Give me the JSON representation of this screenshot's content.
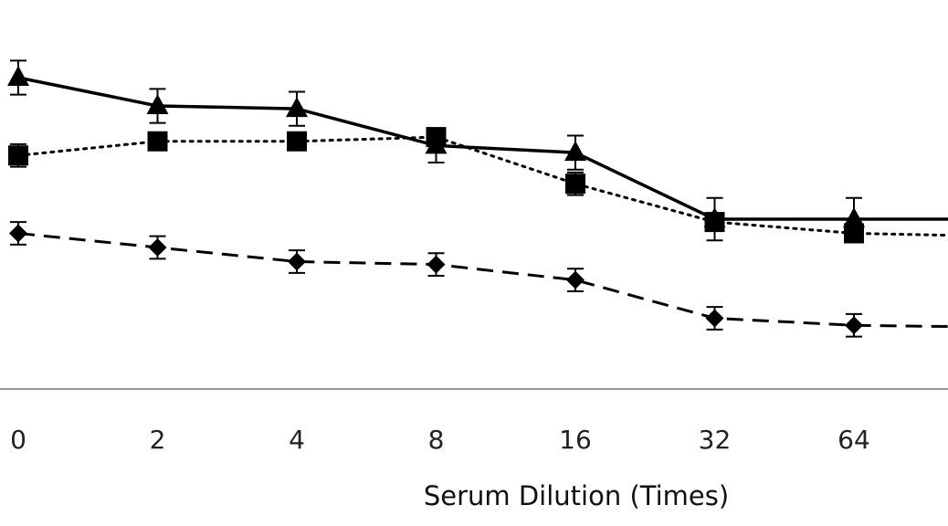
{
  "chart_data": {
    "type": "line",
    "categories": [
      "0",
      "2",
      "4",
      "8",
      "16",
      "32",
      "64"
    ],
    "xlabel": "Serum Dilution (Times)",
    "ylabel": "",
    "grid": false,
    "legend": "none",
    "series": [
      {
        "marker": "triangle",
        "line_style": "solid",
        "color": "#000000",
        "values": [
          2.2,
          2.0,
          1.98,
          1.72,
          1.67,
          1.2,
          1.2
        ],
        "errors": [
          0.12,
          0.12,
          0.12,
          0.12,
          0.12,
          0.15,
          0.15
        ]
      },
      {
        "marker": "square",
        "line_style": "dotted",
        "color": "#000000",
        "values": [
          1.65,
          1.75,
          1.75,
          1.78,
          1.45,
          1.18,
          1.1
        ],
        "errors": [
          0.08,
          0.06,
          0.06,
          0.06,
          0.08,
          0.06,
          0.06
        ]
      },
      {
        "marker": "diamond",
        "line_style": "dashed",
        "color": "#000000",
        "values": [
          1.1,
          1.0,
          0.9,
          0.88,
          0.77,
          0.5,
          0.45
        ],
        "errors": [
          0.08,
          0.08,
          0.08,
          0.08,
          0.08,
          0.08,
          0.08
        ]
      }
    ]
  }
}
